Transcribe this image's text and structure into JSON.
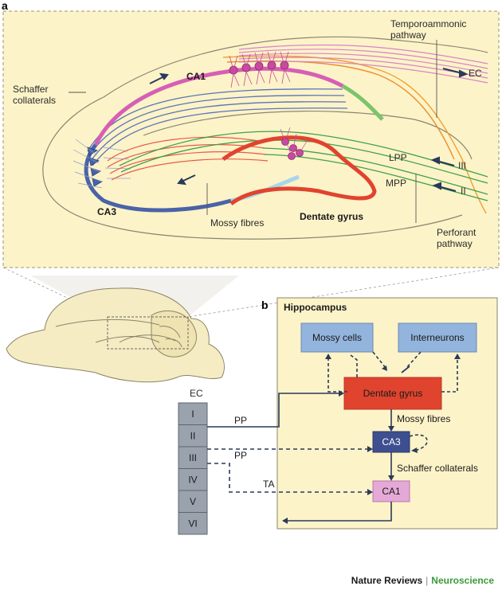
{
  "panels": {
    "a": "a",
    "b": "b"
  },
  "panel_a": {
    "ca1": "CA1",
    "ca3": "CA3",
    "dentate_gyrus": "Dentate gyrus",
    "schaffer_line1": "Schaffer",
    "schaffer_line2": "collaterals",
    "mossy_fibres": "Mossy fibres",
    "temporoammonic_line1": "Temporoammonic",
    "temporoammonic_line2": "pathway",
    "ec": "EC",
    "lpp": "LPP",
    "mpp": "MPP",
    "layer_iii": "III",
    "layer_ii": "II",
    "perforant_line1": "Perforant",
    "perforant_line2": "pathway"
  },
  "panel_b": {
    "hippocampus": "Hippocampus",
    "mossy_cells": "Mossy cells",
    "interneurons": "Interneurons",
    "dentate_gyrus": "Dentate gyrus",
    "ca3": "CA3",
    "ca1": "CA1",
    "mossy_fibres": "Mossy fibres",
    "schaffer_collaterals": "Schaffer collaterals",
    "ec": "EC",
    "layers": [
      "I",
      "II",
      "III",
      "IV",
      "V",
      "VI"
    ],
    "pp1": "PP",
    "pp2": "PP",
    "ta": "TA"
  },
  "footer": {
    "journal": "Nature Reviews",
    "section": "Neuroscience"
  },
  "colors": {
    "panel_bg": "#fdf3c8",
    "ca1": "#d65fb5",
    "ca3": "#4a63a8",
    "dentate": "#e0442e",
    "mossy": "#e85a4a",
    "perforant_green": "#3fa14a",
    "temporoammonic": "#f0a030",
    "cell_box": "#93b4dc",
    "ca3_box": "#3d4f8f",
    "ca1_box": "#e5a9d8",
    "ec_box": "#9aa3ad"
  }
}
